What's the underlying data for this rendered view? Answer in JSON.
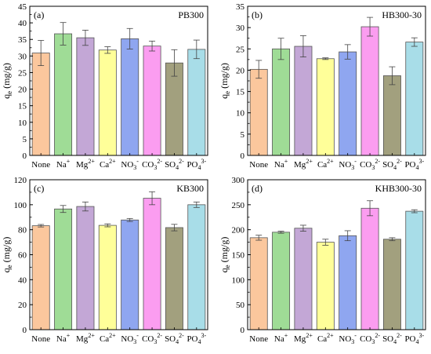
{
  "figure": {
    "colors": [
      "#fbc79d",
      "#9fdc96",
      "#c3a7d6",
      "#ffff99",
      "#8fa6f0",
      "#fb9df0",
      "#a2a07e",
      "#a8dde8"
    ]
  },
  "chart_data": [
    {
      "type": "bar",
      "panel_label": "(a)",
      "title": "PB300",
      "ylabel": "qe (mg/g)",
      "ylim": [
        0,
        45
      ],
      "yticks": [
        0,
        5,
        10,
        15,
        20,
        25,
        30,
        35,
        40,
        45
      ],
      "categories": [
        "None",
        "Na+",
        "Mg2+",
        "Ca2+",
        "NO3-",
        "CO32-",
        "SO42-",
        "PO43-"
      ],
      "values": [
        30.9,
        36.7,
        35.5,
        31.8,
        35.2,
        33.0,
        27.9,
        32.0
      ],
      "errors": [
        3.8,
        3.4,
        2.3,
        1.0,
        3.1,
        1.5,
        4.0,
        2.8
      ]
    },
    {
      "type": "bar",
      "panel_label": "(b)",
      "title": "HB300-30",
      "ylabel": "qe (mg/g)",
      "ylim": [
        0,
        35
      ],
      "yticks": [
        0,
        5,
        10,
        15,
        20,
        25,
        30,
        35
      ],
      "categories": [
        "None",
        "Na+",
        "Mg2+",
        "Ca2+",
        "NO3-",
        "CO32-",
        "SO42-",
        "PO43-"
      ],
      "values": [
        20.2,
        25.0,
        25.6,
        22.7,
        24.3,
        30.2,
        18.7,
        26.6
      ],
      "errors": [
        2.1,
        2.5,
        2.5,
        0.2,
        1.7,
        2.2,
        2.1,
        1.0
      ]
    },
    {
      "type": "bar",
      "panel_label": "(c)",
      "title": "KB300",
      "ylabel": "qe (mg/g)",
      "ylim": [
        0,
        120
      ],
      "yticks": [
        0,
        20,
        40,
        60,
        80,
        100,
        120
      ],
      "categories": [
        "None",
        "Na+",
        "Mg2+",
        "Ca2+",
        "NO3-",
        "CO32-",
        "SO42-",
        "PO43-"
      ],
      "values": [
        83.2,
        96.6,
        98.6,
        83.5,
        87.8,
        105.2,
        81.7,
        100.0
      ],
      "errors": [
        1.0,
        2.8,
        3.6,
        1.2,
        1.2,
        5.2,
        2.6,
        2.2
      ]
    },
    {
      "type": "bar",
      "panel_label": "(d)",
      "title": "KHB300-30",
      "ylabel": "qe (mg/g)",
      "ylim": [
        0,
        300
      ],
      "yticks": [
        0,
        50,
        100,
        150,
        200,
        250,
        300
      ],
      "categories": [
        "None",
        "Na+",
        "Mg2+",
        "Ca2+",
        "NO3-",
        "CO32-",
        "SO42-",
        "PO43-"
      ],
      "values": [
        184.0,
        195.0,
        203.0,
        175.0,
        188.0,
        243.0,
        181.0,
        237.0
      ],
      "errors": [
        5.0,
        2.0,
        6.0,
        6.0,
        10.0,
        15.0,
        3.0,
        3.0
      ]
    }
  ]
}
